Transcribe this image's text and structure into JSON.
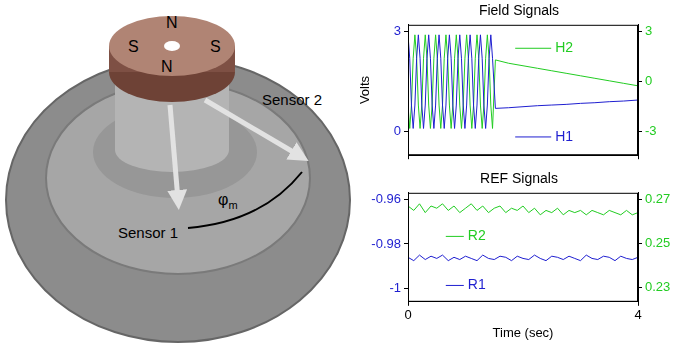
{
  "photo": {
    "magnet_poles": [
      "N",
      "S",
      "S",
      "N"
    ],
    "sensors": [
      "Sensor 1",
      "Sensor 2"
    ],
    "angle_label": {
      "symbol": "φ",
      "subscript": "m"
    }
  },
  "chart_data": [
    {
      "type": "line",
      "title": "Field Signals",
      "ylabel": "Volts",
      "x": [
        0,
        0.03,
        0.06,
        0.09,
        0.12,
        0.15,
        0.18,
        0.21,
        0.24,
        0.27,
        0.3,
        0.33,
        0.36,
        0.39,
        0.42,
        0.45,
        0.48,
        0.51,
        0.54,
        0.57,
        0.6,
        0.63,
        0.66,
        0.69,
        0.72,
        0.75,
        0.78,
        0.81,
        0.84,
        0.87,
        0.9,
        0.93,
        0.96,
        0.99,
        1.02,
        1.05,
        1.08,
        1.11,
        1.14,
        1.17,
        1.2,
        1.23,
        1.26,
        1.29,
        1.32,
        1.35,
        1.38,
        1.41,
        1.44,
        1.47,
        1.52,
        1.75,
        2,
        2.25,
        2.5,
        2.75,
        3,
        3.25,
        3.5,
        3.75,
        4
      ],
      "xlim": [
        0,
        4
      ],
      "xticks": [
        0,
        4
      ],
      "ylim": [
        -0.7,
        3.2
      ],
      "yticks": [
        0,
        3
      ],
      "y2lim": [
        -4.4,
        3.4
      ],
      "y2ticks": [
        -3,
        0,
        3
      ],
      "grid": false,
      "tick_labels": "y",
      "series": [
        {
          "name": "H1",
          "color": "#1f1fd0",
          "values": [
            2.9,
            2.2,
            0.8,
            0.1,
            0.8,
            2.2,
            2.9,
            2.2,
            0.8,
            0.1,
            0.8,
            2.2,
            2.9,
            2.2,
            0.8,
            0.1,
            0.8,
            2.2,
            2.9,
            2.2,
            0.8,
            0.1,
            0.8,
            2.2,
            2.9,
            2.2,
            0.8,
            0.1,
            0.8,
            2.2,
            2.9,
            2.2,
            0.8,
            0.1,
            0.8,
            2.2,
            2.9,
            2.2,
            0.8,
            0.1,
            0.8,
            2.2,
            2.9,
            2.2,
            0.8,
            0.1,
            0.8,
            2.2,
            2.9,
            2.2,
            0.7,
            0.72,
            0.75,
            0.78,
            0.8,
            0.82,
            0.85,
            0.87,
            0.9,
            0.92,
            0.95
          ]
        },
        {
          "name": "H2",
          "color": "#22cc22",
          "axis": "y2",
          "values": [
            -1.4,
            -2.8,
            -1.4,
            1.4,
            2.8,
            1.4,
            -1.4,
            -2.8,
            -1.4,
            1.4,
            2.8,
            1.4,
            -1.4,
            -2.8,
            -1.4,
            1.4,
            2.8,
            1.4,
            -1.4,
            -2.8,
            -1.4,
            1.4,
            2.8,
            1.4,
            -1.4,
            -2.8,
            -1.4,
            1.4,
            2.8,
            1.4,
            -1.4,
            -2.8,
            -1.4,
            1.4,
            2.8,
            1.4,
            -1.4,
            -2.8,
            -1.4,
            1.4,
            2.8,
            1.4,
            -1.4,
            -2.8,
            -1.4,
            1.4,
            2.8,
            1.4,
            -1.4,
            -2.8,
            1.3,
            1.1,
            0.95,
            0.8,
            0.65,
            0.5,
            0.35,
            0.2,
            0.05,
            -0.1,
            -0.25
          ]
        }
      ]
    },
    {
      "type": "line",
      "title": "REF Signals",
      "xlabel": "Time (sec)",
      "x": [
        0,
        0.1,
        0.2,
        0.3,
        0.4,
        0.5,
        0.6,
        0.7,
        0.8,
        0.9,
        1,
        1.1,
        1.2,
        1.3,
        1.4,
        1.5,
        1.6,
        1.7,
        1.8,
        1.9,
        2,
        2.1,
        2.2,
        2.3,
        2.4,
        2.5,
        2.6,
        2.7,
        2.8,
        2.9,
        3,
        3.1,
        3.2,
        3.3,
        3.4,
        3.5,
        3.6,
        3.7,
        3.8,
        3.9,
        4
      ],
      "xlim": [
        0,
        4
      ],
      "xticks": [
        0,
        4
      ],
      "ylim": [
        -1.006,
        -0.957
      ],
      "yticks": [
        -1,
        -0.98,
        -0.96
      ],
      "y2lim": [
        0.2235,
        0.273
      ],
      "y2ticks": [
        0.23,
        0.25,
        0.27
      ],
      "grid": false,
      "series": [
        {
          "name": "R2",
          "color": "#22cc22",
          "axis": "y2",
          "values": [
            0.267,
            0.265,
            0.268,
            0.264,
            0.267,
            0.266,
            0.268,
            0.265,
            0.267,
            0.264,
            0.266,
            0.268,
            0.265,
            0.267,
            0.264,
            0.266,
            0.267,
            0.264,
            0.266,
            0.265,
            0.267,
            0.264,
            0.266,
            0.263,
            0.265,
            0.264,
            0.266,
            0.263,
            0.265,
            0.264,
            0.265,
            0.263,
            0.265,
            0.264,
            0.263,
            0.265,
            0.264,
            0.263,
            0.265,
            0.263,
            0.264
          ]
        },
        {
          "name": "R1",
          "color": "#1f1fd0",
          "values": [
            -0.986,
            -0.9875,
            -0.985,
            -0.987,
            -0.9855,
            -0.9865,
            -0.985,
            -0.9875,
            -0.986,
            -0.987,
            -0.9855,
            -0.9865,
            -0.9875,
            -0.985,
            -0.9865,
            -0.987,
            -0.9855,
            -0.986,
            -0.9875,
            -0.9855,
            -0.9865,
            -0.987,
            -0.985,
            -0.9865,
            -0.9875,
            -0.9855,
            -0.986,
            -0.987,
            -0.9855,
            -0.9865,
            -0.9875,
            -0.985,
            -0.9865,
            -0.987,
            -0.9855,
            -0.986,
            -0.9875,
            -0.9855,
            -0.9865,
            -0.987,
            -0.986
          ]
        }
      ]
    }
  ]
}
